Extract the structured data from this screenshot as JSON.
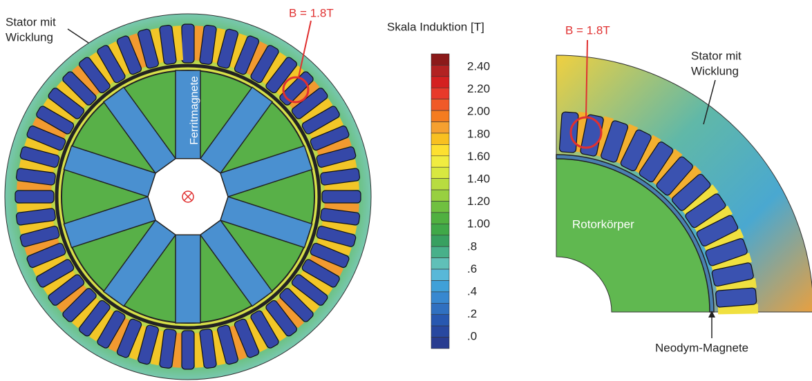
{
  "left": {
    "stator_label": [
      "Stator mit",
      "Wicklung"
    ],
    "flux_label": "B = 1.8T",
    "magnet_label": "Ferritmagnete"
  },
  "scale": {
    "title": "Skala Induktion [T]",
    "labels": [
      "2.40",
      "2.20",
      "2.00",
      "1.80",
      "1.60",
      "1.40",
      "1.20",
      "1.00",
      ".8",
      ".6",
      ".4",
      ".2",
      ".0"
    ],
    "colors": [
      "#8b1a1a",
      "#b22222",
      "#d42020",
      "#e8392a",
      "#f05a28",
      "#f47c20",
      "#f5a030",
      "#f8c020",
      "#fde030",
      "#f0ec40",
      "#d8e840",
      "#b8dc40",
      "#98d040",
      "#70c040",
      "#50b040",
      "#40a848",
      "#38a060",
      "#48b08a",
      "#60c0b8",
      "#58b8d8",
      "#40a0d8",
      "#3888d0",
      "#3070c0",
      "#2858b0",
      "#2848a0",
      "#283c90"
    ]
  },
  "right": {
    "flux_label": "B = 1.8T",
    "stator_label": [
      "Stator mit",
      "Wicklung"
    ],
    "rotor_label": "Rotorkörper",
    "magnet_label": "Neodym-Magnete"
  }
}
